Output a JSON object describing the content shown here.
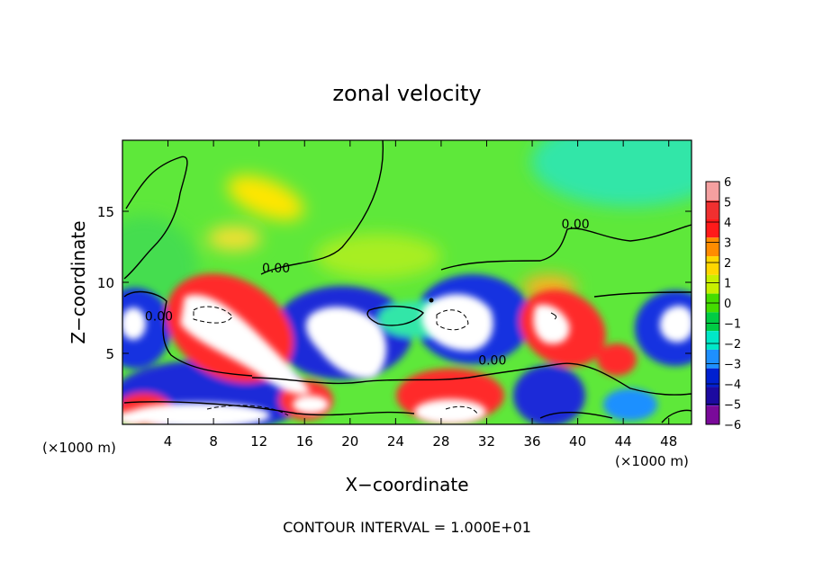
{
  "chart_data": {
    "type": "heatmap",
    "title": "zonal velocity",
    "xlabel": "X−coordinate",
    "ylabel": "Z−coordinate",
    "x_units_left": "(×1000 m)",
    "x_units_right": "(×1000 m)",
    "footer": "CONTOUR INTERVAL = 1.000E+01",
    "xlim": [
      0,
      50
    ],
    "ylim": [
      0,
      20
    ],
    "x_ticks": [
      4,
      8,
      12,
      16,
      20,
      24,
      28,
      32,
      36,
      40,
      44,
      48
    ],
    "y_ticks": [
      5,
      10,
      15
    ],
    "colorbar": {
      "levels": [
        6,
        5,
        4,
        3,
        2,
        1,
        0,
        -1,
        -2,
        -3,
        -4,
        -5,
        -6
      ],
      "colors": [
        "#f4a0a0",
        "#f03030",
        "#ff1a1a",
        "#ff8c00",
        "#ffd700",
        "#c8f000",
        "#44dd00",
        "#00cc44",
        "#00e8c8",
        "#1e90ff",
        "#0020d0",
        "#1c0aa0",
        "#7a0a9a"
      ],
      "saturation_high_color": "#ffffff",
      "saturation_low_color": "#ffffff",
      "background_color": "#5ee83a"
    },
    "contour_labels": [
      {
        "text": "0.00",
        "x": 13.5,
        "y": 10.7
      },
      {
        "text": "0.00",
        "x": 3.2,
        "y": 7.3
      },
      {
        "text": "0.00",
        "x": 39.8,
        "y": 13.8
      },
      {
        "text": "0.00",
        "x": 32.5,
        "y": 4.2
      }
    ]
  }
}
